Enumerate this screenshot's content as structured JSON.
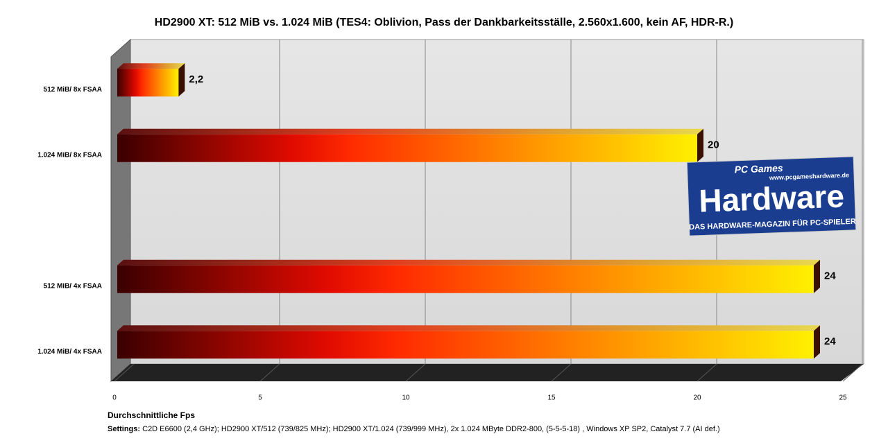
{
  "chart_data": {
    "type": "bar3d",
    "title": "HD2900 XT: 512 MiB vs. 1.024 MiB (TES4: Oblivion, Pass der Dankbarkeitsställe, 2.560x1.600,  kein AF, HDR-R.)",
    "categories": [
      "512 MiB/ 8x FSAA",
      "1.024 MiB/ 8x FSAA",
      null,
      "512 MiB/ 4x FSAA",
      "1.024 MiB/ 4x FSAA"
    ],
    "values": [
      2.2,
      20,
      null,
      24,
      24
    ],
    "value_labels": [
      "2,2",
      "20",
      null,
      "24",
      "24"
    ],
    "xlim": [
      0,
      25
    ],
    "xticks": [
      0,
      5,
      10,
      15,
      20,
      25
    ],
    "grid": true,
    "xlabel": "Durchschnittliche Fps",
    "note_label": "Settings:",
    "note": "C2D E6600 (2,4 GHz); HD2900 XT/512 (739/825 MHz); HD2900 XT/1.024 (739/999 MHz), 2x 1.024 MByte DDR2-800, (5-5-5-18) , Windows XP SP2, Catalyst 7.7 (AI def.)",
    "watermark": {
      "brand_small": "PC Games",
      "brand": "Hardware",
      "url": "www.pcgameshardware.de",
      "slogan": "DAS HARDWARE-MAGAZIN FÜR PC-SPIELER"
    }
  }
}
